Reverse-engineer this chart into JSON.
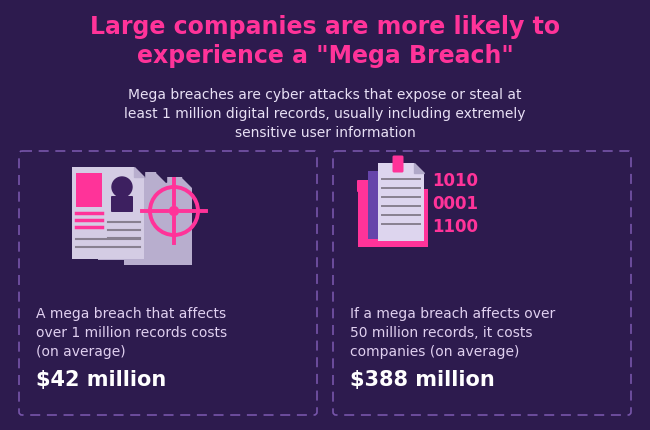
{
  "bg_color": "#2d1b4e",
  "title": "Large companies are more likely to\nexperience a \"Mega Breach\"",
  "title_color": "#ff3399",
  "title_fontsize": 17,
  "subtitle": "Mega breaches are cyber attacks that expose or steal at\nleast 1 million digital records, usually including extremely\nsensitive user information",
  "subtitle_color": "#e8e0f5",
  "subtitle_fontsize": 10,
  "box_border_color": "#7755aa",
  "box1_desc": "A mega breach that affects\nover 1 million records costs\n(on average)",
  "box1_value": "$42 million",
  "box2_desc": "If a mega breach affects over\n50 million records, it costs\ncompanies (on average)",
  "box2_value": "$388 million",
  "box_desc_color": "#e0d0f0",
  "box_value_color": "#ffffff",
  "desc_fontsize": 10,
  "value_fontsize": 15,
  "pink": "#ff3399",
  "doc_gray_back": "#b8aece",
  "doc_gray_front": "#d4cce4",
  "doc_dark": "#3d2060",
  "dark_purple": "#3d2060",
  "binary_color": "#ff3399",
  "binary_text": "1010\n0001\n1100",
  "folder_pink": "#ff3399",
  "folder_purple": "#6644aa"
}
